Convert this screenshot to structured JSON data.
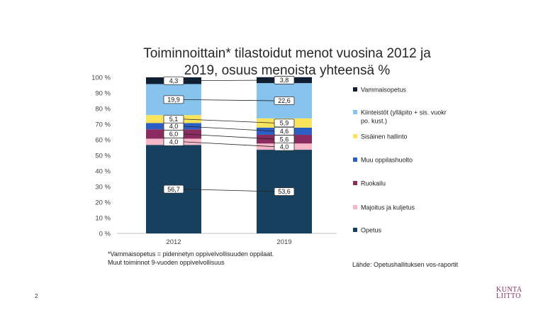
{
  "page_number": "2",
  "logo": {
    "line1": "KUNTA",
    "line2": "LIITTO"
  },
  "footnote": {
    "line1": "*Vammaisopetus = pidennetyn oppivelvollisuuden oppilaat.",
    "line2": "Muut toiminnot 9-vuoden oppivelvollisuus"
  },
  "source": "Lähde: Opetushallituksen vos-raportit",
  "chart_data": {
    "type": "bar",
    "stacked": true,
    "title_line1": "Toiminnoittain* tilastoidut menot vuosina 2012 ja",
    "title_line2": "2019, osuus menoista yhteensä %",
    "categories": [
      "2012",
      "2019"
    ],
    "ylim": [
      0,
      100
    ],
    "yticks": [
      "0 %",
      "10 %",
      "20 %",
      "30 %",
      "40 %",
      "50 %",
      "60 %",
      "70 %",
      "80 %",
      "90 %",
      "100 %"
    ],
    "legend_position": "right",
    "series": [
      {
        "name": "Opetus",
        "color": "#17405f",
        "values": [
          56.7,
          53.6
        ],
        "labels": [
          "56,7",
          "53,6"
        ]
      },
      {
        "name": "Majoitus ja kuljetus",
        "color": "#f6b7c9",
        "values": [
          4.0,
          4.0
        ],
        "labels": [
          "4,0",
          "4,0"
        ]
      },
      {
        "name": "Ruokailu",
        "color": "#8a2c5f",
        "values": [
          6.0,
          5.6
        ],
        "labels": [
          "6,0",
          "5,6"
        ]
      },
      {
        "name": "Muu oppilashuolto",
        "color": "#2b5fc4",
        "values": [
          4.0,
          4.6
        ],
        "labels": [
          "4,0",
          "4,6"
        ]
      },
      {
        "name": "Sisäinen hallinto",
        "color": "#fbe45d",
        "values": [
          5.1,
          5.9
        ],
        "labels": [
          "5,1",
          "5,9"
        ]
      },
      {
        "name": "Kiinteistöt (ylläpito + sis. vuokr po. kust.)",
        "name_lines": [
          "Kiinteistöt (ylläpito + sis. vuokr",
          "po. kust.)"
        ],
        "color": "#86c4ee",
        "values": [
          19.9,
          22.6
        ],
        "labels": [
          "19,9",
          "22,6"
        ]
      },
      {
        "name": "Vammaisopetus",
        "color": "#0e1e33",
        "values": [
          4.3,
          3.8
        ],
        "labels": [
          "4,3",
          "3,8"
        ]
      }
    ]
  }
}
